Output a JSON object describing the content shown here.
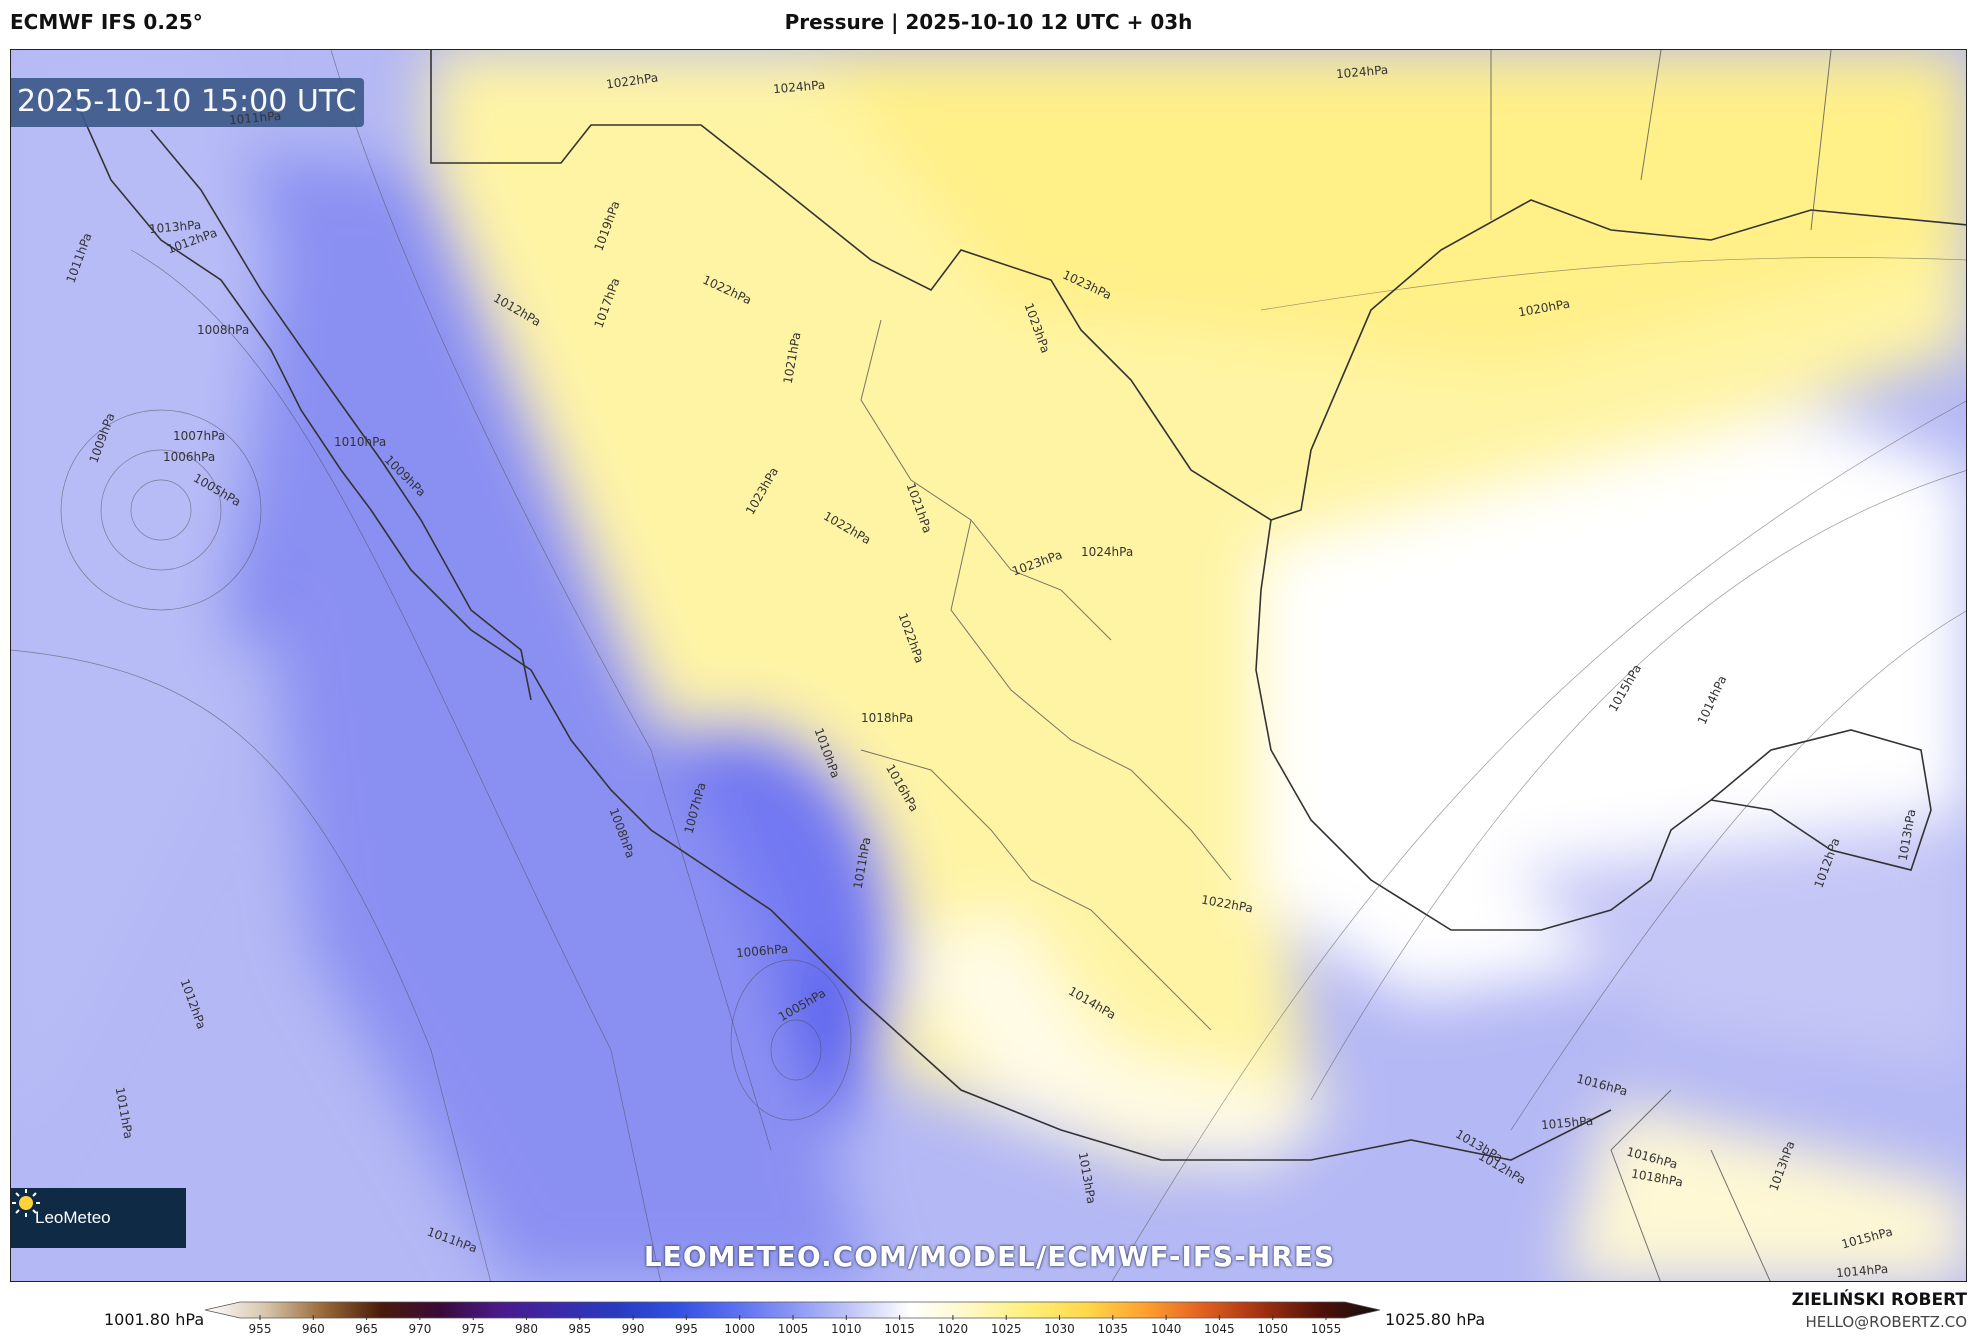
{
  "header": {
    "model": "ECMWF IFS 0.25°",
    "title": "Pressure | 2025-10-10 12 UTC + 03h"
  },
  "map": {
    "valid_time": "2025-10-10 15:00 UTC",
    "watermark_url": "LEOMETEO.COM/MODEL/ECMWF-IFS-HRES",
    "logo_text": "LeoMeteo",
    "contour_labels": [
      "1022hPa",
      "1024hPa",
      "1024hPa",
      "1011hPa",
      "1013hPa",
      "1012hPa",
      "1019hPa",
      "1017hPa",
      "1022hPa",
      "1011hPa",
      "1012hPa",
      "1021hPa",
      "1023hPa",
      "1023hPa",
      "1020hPa",
      "1008hPa",
      "1007hPa",
      "1006hPa",
      "1005hPa",
      "1009hPa",
      "1010hPa",
      "1009hPa",
      "1023hPa",
      "1022hPa",
      "1021hPa",
      "1023hPa",
      "1024hPa",
      "1022hPa",
      "1018hPa",
      "1010hPa",
      "1016hPa",
      "1011hPa",
      "1008hPa",
      "1007hPa",
      "1006hPa",
      "1005hPa",
      "1015hPa",
      "1014hPa",
      "1012hPa",
      "1011hPa",
      "1022hPa",
      "1014hPa",
      "1016hPa",
      "1015hPa",
      "1013hPa",
      "1016hPa",
      "1018hPa",
      "1012hPa",
      "1013hPa",
      "1013hPa",
      "1011hPa",
      "1015hPa",
      "1014hPa",
      "1012hPa",
      "1013hPa"
    ]
  },
  "colorbar": {
    "min_label": "1001.80 hPa",
    "max_label": "1025.80 hPa",
    "ticks": [
      "955",
      "960",
      "965",
      "970",
      "975",
      "980",
      "985",
      "990",
      "995",
      "1000",
      "1005",
      "1010",
      "1015",
      "1020",
      "1025",
      "1030",
      "1035",
      "1040",
      "1045",
      "1050",
      "1055"
    ],
    "stops": [
      "#ffffff",
      "#d8c8b0",
      "#9a6a3a",
      "#4a1a0a",
      "#3a0a3a",
      "#4a1a8a",
      "#3a2aaa",
      "#2a3ac0",
      "#3050e0",
      "#5a6ef0",
      "#8a96f4",
      "#c0c6f8",
      "#ffffff",
      "#fff8c8",
      "#fff07a",
      "#ffd84a",
      "#ffa030",
      "#e06020",
      "#a03010",
      "#501008",
      "#101010"
    ]
  },
  "credit": {
    "name": "ZIELIŃSKI ROBERT",
    "email": "HELLO@ROBERTZ.CO"
  }
}
